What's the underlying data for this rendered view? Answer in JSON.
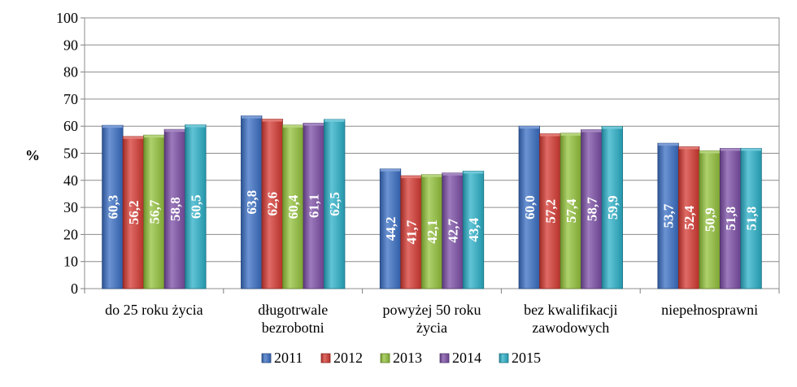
{
  "chart_data": {
    "type": "bar",
    "title": "",
    "xlabel": "",
    "ylabel": "%",
    "ylim": [
      0,
      100
    ],
    "yticks": [
      0,
      10,
      20,
      30,
      40,
      50,
      60,
      70,
      80,
      90,
      100
    ],
    "grid": true,
    "legend_position": "bottom",
    "categories": [
      [
        "do 25 roku życia"
      ],
      [
        "długotrwale",
        "bezrobotni"
      ],
      [
        "powyżej 50 roku",
        "życia"
      ],
      [
        "bez kwalifikacji",
        "zawodowych"
      ],
      [
        "niepełnosprawni"
      ]
    ],
    "series": [
      {
        "name": "2011",
        "color": "#3a6fc4",
        "values": [
          60.3,
          63.8,
          44.2,
          60.0,
          53.7
        ],
        "labels": [
          "60,3",
          "63,8",
          "44,2",
          "60,0",
          "53,7"
        ]
      },
      {
        "name": "2012",
        "color": "#d63a33",
        "values": [
          56.2,
          62.6,
          41.7,
          57.2,
          52.4
        ],
        "labels": [
          "56,2",
          "62,6",
          "41,7",
          "57,2",
          "52,4"
        ]
      },
      {
        "name": "2013",
        "color": "#93c23b",
        "values": [
          56.7,
          60.4,
          42.1,
          57.4,
          50.9
        ],
        "labels": [
          "56,7",
          "60,4",
          "42,1",
          "57,4",
          "50,9"
        ]
      },
      {
        "name": "2014",
        "color": "#7b4ea6",
        "values": [
          58.8,
          61.1,
          42.7,
          58.7,
          51.8
        ],
        "labels": [
          "58,8",
          "61,1",
          "42,7",
          "58,7",
          "51,8"
        ]
      },
      {
        "name": "2015",
        "color": "#2bb0c8",
        "values": [
          60.5,
          62.5,
          43.4,
          59.9,
          51.8
        ],
        "labels": [
          "60,5",
          "62,5",
          "43,4",
          "59,9",
          "51,8"
        ]
      }
    ]
  }
}
